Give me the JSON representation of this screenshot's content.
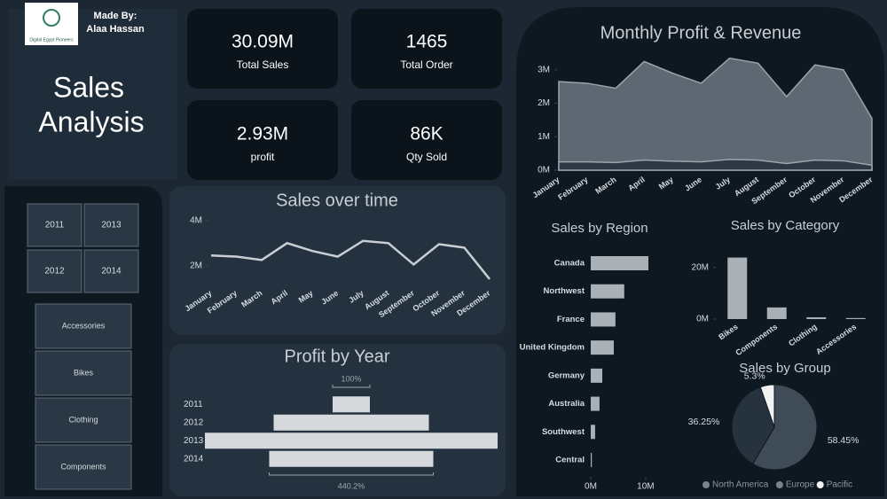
{
  "header": {
    "logo_text": "Digital Egypt Pioneers",
    "made_by": "Made By:",
    "author": "Alaa Hassan",
    "title_lines": [
      "Sales",
      "Analysis"
    ]
  },
  "kpis": [
    {
      "value": "30.09M",
      "label": "Total Sales"
    },
    {
      "value": "1465",
      "label": "Total Order"
    },
    {
      "value": "2.93M",
      "label": "profit"
    },
    {
      "value": "86K",
      "label": "Qty Sold"
    }
  ],
  "filters": {
    "years": [
      "2011",
      "2013",
      "2012",
      "2014"
    ],
    "categories": [
      "Accessories",
      "Bikes",
      "Clothing",
      "Components"
    ]
  },
  "chart_data": [
    {
      "type": "area",
      "title": "Monthly Profit & Revenue",
      "categories": [
        "January",
        "February",
        "March",
        "April",
        "May",
        "June",
        "July",
        "August",
        "September",
        "October",
        "November",
        "December"
      ],
      "series": [
        {
          "color": "#5d6872",
          "values": [
            2.65,
            2.6,
            2.45,
            3.25,
            2.9,
            2.6,
            3.35,
            3.2,
            2.2,
            3.15,
            3.0,
            1.55
          ]
        },
        {
          "color": "#2c3944",
          "values": [
            0.25,
            0.25,
            0.23,
            0.3,
            0.27,
            0.25,
            0.32,
            0.3,
            0.2,
            0.3,
            0.28,
            0.15
          ]
        }
      ],
      "ylim": [
        0,
        3.5
      ],
      "yticks": [
        {
          "value": 0,
          "label": "0M"
        },
        {
          "value": 1,
          "label": "1M"
        },
        {
          "value": 2,
          "label": "2M"
        },
        {
          "value": 3,
          "label": "3M"
        }
      ]
    },
    {
      "type": "line",
      "title": "Sales over time",
      "categories": [
        "January",
        "February",
        "March",
        "April",
        "May",
        "June",
        "July",
        "August",
        "September",
        "October",
        "November",
        "December"
      ],
      "series": [
        {
          "color": "#c9ced3",
          "values": [
            2.45,
            2.4,
            2.25,
            3.0,
            2.65,
            2.4,
            3.1,
            3.0,
            2.05,
            2.95,
            2.8,
            1.4
          ]
        }
      ],
      "ylim": [
        1.2,
        4.35
      ],
      "yticks": [
        {
          "value": 2,
          "label": "2M"
        },
        {
          "value": 4,
          "label": "4M"
        }
      ]
    },
    {
      "type": "funnel",
      "title": "Profit by Year",
      "categories": [
        "2011",
        "2012",
        "2013",
        "2014"
      ],
      "values": [
        0.168,
        0.7,
        1.32,
        0.74
      ],
      "color": "#d6d9dc",
      "annotations": [
        "100%",
        "440.2%"
      ]
    },
    {
      "type": "hbar",
      "title": "Sales by Region",
      "categories": [
        "Canada",
        "Northwest",
        "France",
        "United Kingdom",
        "Germany",
        "Australia",
        "Southwest",
        "Central"
      ],
      "values": [
        10.5,
        6.1,
        4.5,
        4.2,
        2.1,
        1.6,
        0.8,
        0.2
      ],
      "color": "#a9b0b6",
      "xlim": [
        0,
        10.5
      ],
      "xticks": [
        {
          "value": 0,
          "label": "0M"
        },
        {
          "value": 10,
          "label": "10M"
        }
      ]
    },
    {
      "type": "bar",
      "title": "Sales by Category",
      "categories": [
        "Bikes",
        "Components",
        "Clothing",
        "Accessories"
      ],
      "values": [
        23.8,
        4.5,
        0.7,
        0.4
      ],
      "color": "#a9b0b6",
      "ylim": [
        0,
        24
      ],
      "yticks": [
        {
          "value": 0,
          "label": "0M"
        },
        {
          "value": 20,
          "label": "20M"
        }
      ]
    },
    {
      "type": "pie",
      "title": "Sales by Group",
      "categories": [
        "North America",
        "Europe",
        "Pacific"
      ],
      "values": [
        58.45,
        36.25,
        5.3
      ],
      "value_labels": [
        "58.45%",
        "36.25%",
        "5.3%"
      ],
      "colors": [
        "#3f4b57",
        "#26323d",
        "#f2f2f2"
      ]
    }
  ]
}
